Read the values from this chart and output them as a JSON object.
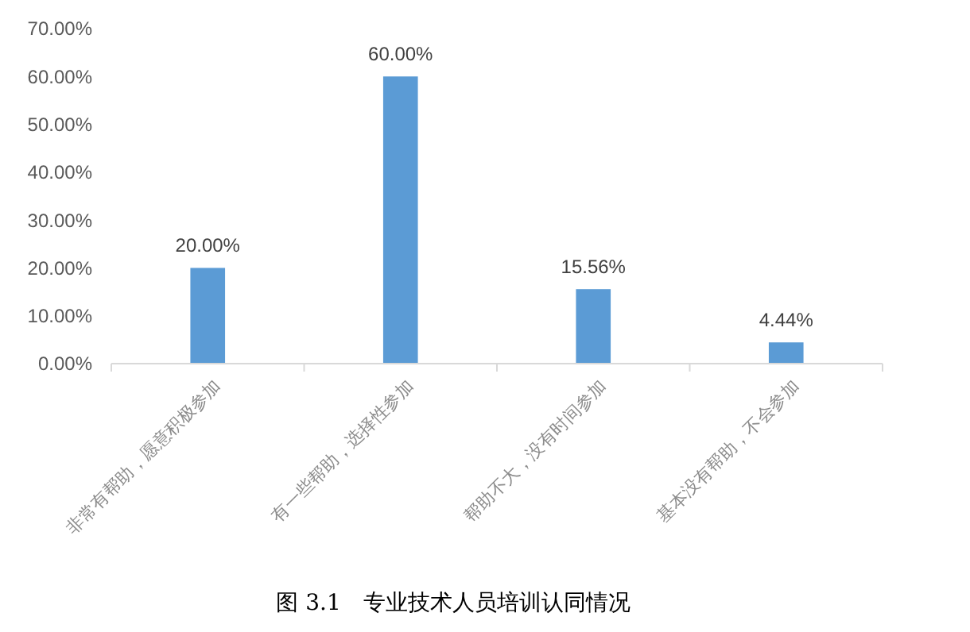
{
  "chart_data": {
    "type": "bar",
    "categories": [
      "非常有帮助，愿意积极参加",
      "有一些帮助，选择性参加",
      "帮助不大，没有时间参加",
      "基本没有帮助，不会参加"
    ],
    "values": [
      20,
      60,
      15.56,
      4.44
    ],
    "color": "#5b9bd5",
    "value_labels": [
      "20.00%",
      "60.00%",
      "15.56%",
      "4.44%"
    ],
    "ylim": [
      0,
      70
    ],
    "yticks": [
      {
        "value": 0,
        "label": "0.00%"
      },
      {
        "value": 10,
        "label": "10.00%"
      },
      {
        "value": 20,
        "label": "20.00%"
      },
      {
        "value": 30,
        "label": "30.00%"
      },
      {
        "value": 40,
        "label": "40.00%"
      },
      {
        "value": 50,
        "label": "50.00%"
      },
      {
        "value": 60,
        "label": "60.00%"
      },
      {
        "value": 70,
        "label": "70.00%"
      }
    ],
    "grid": false,
    "annotations": [
      "图 3.1　专业技术人员培训认同情况"
    ]
  }
}
